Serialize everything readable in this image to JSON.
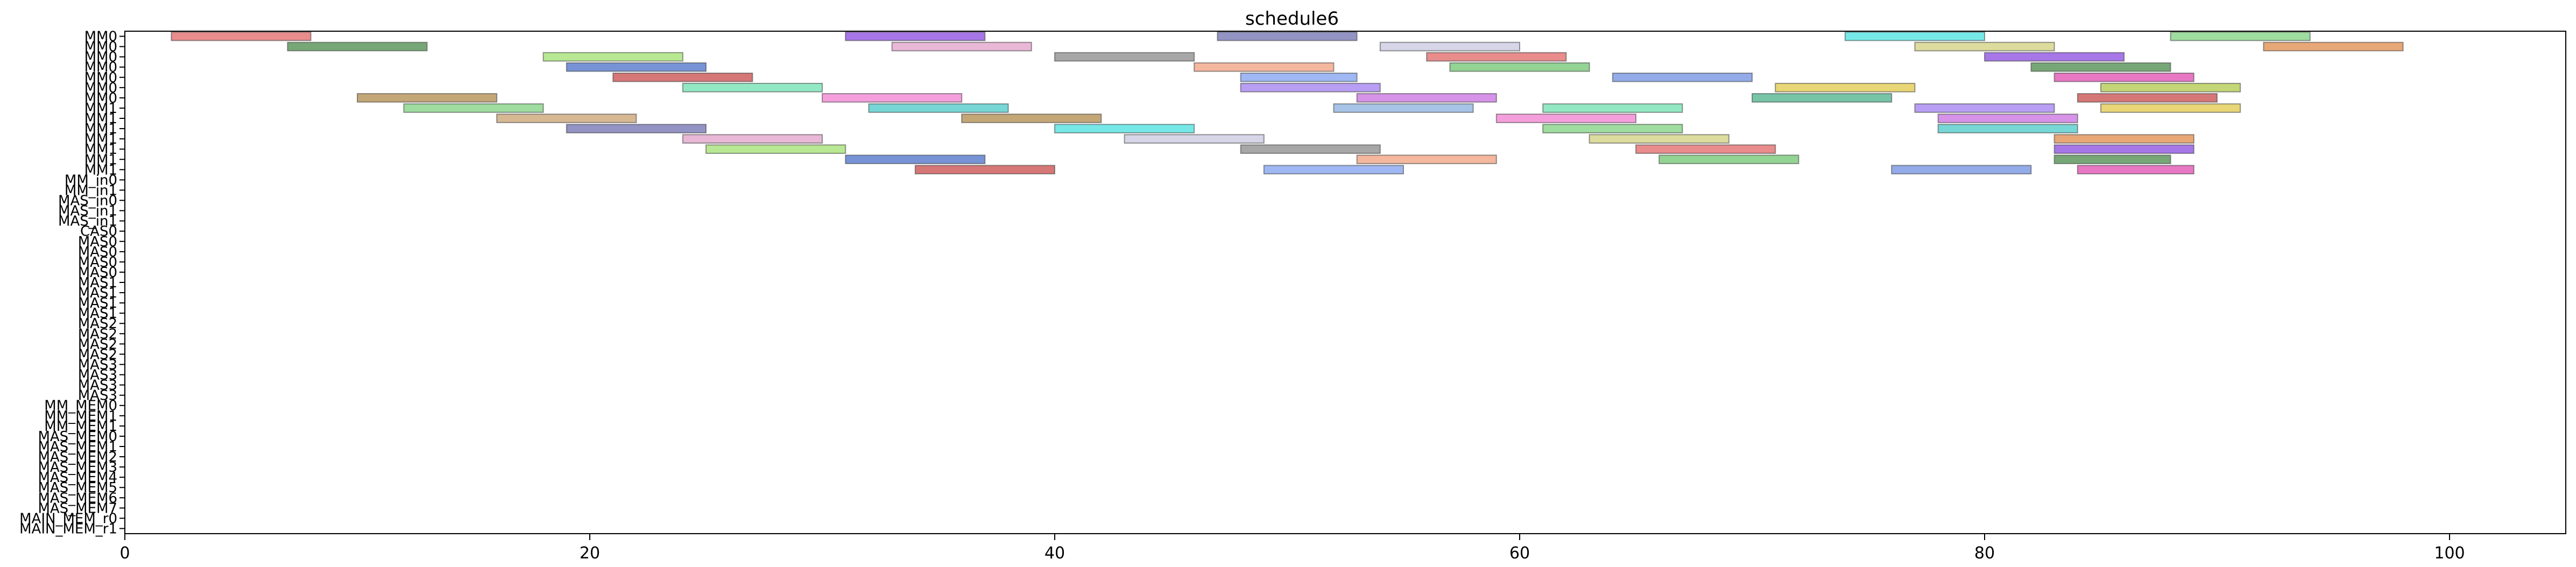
{
  "chart_data": {
    "type": "gantt",
    "title": "schedule6",
    "xlabel": "",
    "ylabel": "",
    "xlim": [
      0,
      105
    ],
    "x_ticks": [
      "0",
      "20",
      "40",
      "60",
      "80",
      "100"
    ],
    "x_tick_values": [
      0,
      20,
      40,
      60,
      80,
      100
    ],
    "y_ticks": [
      "MM0",
      "MM0",
      "MM0",
      "MM0",
      "MM0",
      "MM0",
      "MM0",
      "MM1",
      "MM1",
      "MM1",
      "MM1",
      "MM1",
      "MM1",
      "MM1",
      "MM_in0",
      "MM_in1",
      "MAS_in0",
      "MAS_in1",
      "MAS_in1",
      "CAS0",
      "MAS0",
      "MAS0",
      "MAS0",
      "MAS0",
      "MAS1",
      "MAS1",
      "MAS1",
      "MAS1",
      "MAS2",
      "MAS2",
      "MAS2",
      "MAS2",
      "MAS3",
      "MAS3",
      "MAS3",
      "MAS3",
      "MM_MEM0",
      "MM_MEM1",
      "MM_MEM1",
      "MAS_MEM0",
      "MAS_MEM1",
      "MAS_MEM2",
      "MAS_MEM3",
      "MAS_MEM4",
      "MAS_MEM5",
      "MAS_MEM6",
      "MAS_MEM7",
      "MAIN_MEM_r0",
      "MAIN_MEM_r1"
    ],
    "palette": [
      "#e06666",
      "#6fc46f",
      "#6f8fe0",
      "#e0c84a",
      "#c86fe0",
      "#4ac8c8",
      "#e08a4a",
      "#8a4ae0",
      "#4a8a4a",
      "#e04ab0",
      "#b0c84a",
      "#4ab08a",
      "#8ab0e0",
      "#c8a06f",
      "#6f6fb0",
      "#e0a0c8",
      "#a0e06f",
      "#4a6fc8",
      "#c84a4a",
      "#6fe0b0",
      "#b08a4a",
      "#4ae0e0",
      "#c8c8e0",
      "#8a8a8a",
      "#f0a07f",
      "#7fa0f0",
      "#a07ff0",
      "#f07fd0",
      "#7fd07f",
      "#d0d07f"
    ],
    "bars": [
      {
        "row": 0,
        "start": 2,
        "end": 8
      },
      {
        "row": 0,
        "start": 31,
        "end": 37
      },
      {
        "row": 0,
        "start": 47,
        "end": 53
      },
      {
        "row": 0,
        "start": 74,
        "end": 80
      },
      {
        "row": 0,
        "start": 88,
        "end": 94
      },
      {
        "row": 1,
        "start": 7,
        "end": 13
      },
      {
        "row": 1,
        "start": 33,
        "end": 39
      },
      {
        "row": 1,
        "start": 54,
        "end": 60
      },
      {
        "row": 1,
        "start": 77,
        "end": 83
      },
      {
        "row": 1,
        "start": 92,
        "end": 98
      },
      {
        "row": 2,
        "start": 18,
        "end": 24
      },
      {
        "row": 2,
        "start": 40,
        "end": 46
      },
      {
        "row": 2,
        "start": 56,
        "end": 62
      },
      {
        "row": 2,
        "start": 80,
        "end": 86
      },
      {
        "row": 3,
        "start": 19,
        "end": 25
      },
      {
        "row": 3,
        "start": 46,
        "end": 52
      },
      {
        "row": 3,
        "start": 57,
        "end": 63
      },
      {
        "row": 3,
        "start": 82,
        "end": 88
      },
      {
        "row": 4,
        "start": 21,
        "end": 27
      },
      {
        "row": 4,
        "start": 48,
        "end": 53
      },
      {
        "row": 4,
        "start": 64,
        "end": 70
      },
      {
        "row": 4,
        "start": 83,
        "end": 89
      },
      {
        "row": 5,
        "start": 24,
        "end": 30
      },
      {
        "row": 5,
        "start": 48,
        "end": 54
      },
      {
        "row": 5,
        "start": 71,
        "end": 77
      },
      {
        "row": 5,
        "start": 85,
        "end": 91
      },
      {
        "row": 6,
        "start": 10,
        "end": 16
      },
      {
        "row": 6,
        "start": 30,
        "end": 36
      },
      {
        "row": 6,
        "start": 53,
        "end": 59
      },
      {
        "row": 6,
        "start": 70,
        "end": 76
      },
      {
        "row": 6,
        "start": 84,
        "end": 90
      },
      {
        "row": 7,
        "start": 12,
        "end": 18
      },
      {
        "row": 7,
        "start": 32,
        "end": 38
      },
      {
        "row": 7,
        "start": 52,
        "end": 58
      },
      {
        "row": 7,
        "start": 61,
        "end": 67
      },
      {
        "row": 7,
        "start": 77,
        "end": 83
      },
      {
        "row": 7,
        "start": 85,
        "end": 91
      },
      {
        "row": 8,
        "start": 16,
        "end": 22
      },
      {
        "row": 8,
        "start": 36,
        "end": 42
      },
      {
        "row": 8,
        "start": 59,
        "end": 65
      },
      {
        "row": 8,
        "start": 78,
        "end": 84
      },
      {
        "row": 9,
        "start": 19,
        "end": 25
      },
      {
        "row": 9,
        "start": 40,
        "end": 46
      },
      {
        "row": 9,
        "start": 61,
        "end": 67
      },
      {
        "row": 9,
        "start": 78,
        "end": 84
      },
      {
        "row": 10,
        "start": 24,
        "end": 30
      },
      {
        "row": 10,
        "start": 43,
        "end": 49
      },
      {
        "row": 10,
        "start": 63,
        "end": 69
      },
      {
        "row": 10,
        "start": 83,
        "end": 89
      },
      {
        "row": 11,
        "start": 25,
        "end": 31
      },
      {
        "row": 11,
        "start": 48,
        "end": 54
      },
      {
        "row": 11,
        "start": 65,
        "end": 71
      },
      {
        "row": 11,
        "start": 83,
        "end": 89
      },
      {
        "row": 12,
        "start": 31,
        "end": 37
      },
      {
        "row": 12,
        "start": 53,
        "end": 59
      },
      {
        "row": 12,
        "start": 66,
        "end": 72
      },
      {
        "row": 12,
        "start": 83,
        "end": 88
      },
      {
        "row": 13,
        "start": 34,
        "end": 40
      },
      {
        "row": 13,
        "start": 49,
        "end": 55
      },
      {
        "row": 13,
        "start": 76,
        "end": 82
      },
      {
        "row": 13,
        "start": 84,
        "end": 89
      }
    ]
  }
}
